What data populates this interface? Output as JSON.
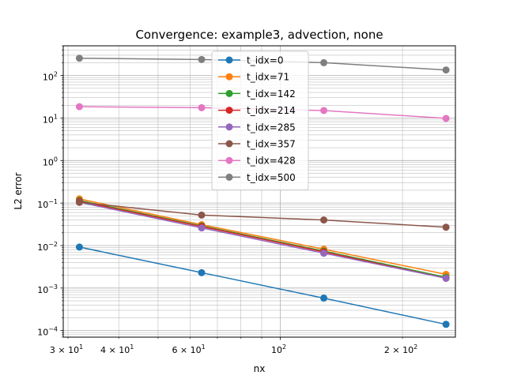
{
  "chart_data": {
    "type": "line",
    "title": "Convergence: example3, advection, none",
    "xlabel": "nx",
    "ylabel": "L2 error",
    "xscale": "log",
    "yscale": "log",
    "xlim": [
      29.2,
      270
    ],
    "ylim": [
      7e-05,
      500
    ],
    "grid": "major+minor",
    "legend_position": "top-center",
    "x": [
      32,
      64,
      128,
      256
    ],
    "xticks": [
      {
        "value": 30,
        "base": "3 × 10",
        "exp": "1"
      },
      {
        "value": 40,
        "base": "4 × 10",
        "exp": "1"
      },
      {
        "value": 60,
        "base": "6 × 10",
        "exp": "1"
      },
      {
        "value": 100,
        "base": "10",
        "exp": "2"
      },
      {
        "value": 200,
        "base": "2 × 10",
        "exp": "2"
      }
    ],
    "yticks": [
      {
        "value": 0.0001,
        "base": "10",
        "exp": "−4"
      },
      {
        "value": 0.001,
        "base": "10",
        "exp": "−3"
      },
      {
        "value": 0.01,
        "base": "10",
        "exp": "−2"
      },
      {
        "value": 0.1,
        "base": "10",
        "exp": "−1"
      },
      {
        "value": 1,
        "base": "10",
        "exp": "0"
      },
      {
        "value": 10,
        "base": "10",
        "exp": "1"
      },
      {
        "value": 100,
        "base": "10",
        "exp": "2"
      }
    ],
    "series": [
      {
        "name": "t_idx=0",
        "color": "#1f77b4",
        "values": [
          0.0092,
          0.0023,
          0.00058,
          0.00014
        ]
      },
      {
        "name": "t_idx=71",
        "color": "#ff7f0e",
        "values": [
          0.125,
          0.031,
          0.0082,
          0.0021
        ]
      },
      {
        "name": "t_idx=142",
        "color": "#2ca02c",
        "values": [
          0.115,
          0.029,
          0.0074,
          0.0018
        ]
      },
      {
        "name": "t_idx=214",
        "color": "#d62728",
        "values": [
          0.11,
          0.028,
          0.0071,
          0.0017
        ]
      },
      {
        "name": "t_idx=285",
        "color": "#9467bd",
        "values": [
          0.104,
          0.026,
          0.0066,
          0.0017
        ]
      },
      {
        "name": "t_idx=357",
        "color": "#8c564b",
        "values": [
          0.104,
          0.052,
          0.04,
          0.027
        ]
      },
      {
        "name": "t_idx=428",
        "color": "#e377c2",
        "values": [
          18.5,
          17.5,
          15.0,
          9.8
        ]
      },
      {
        "name": "t_idx=500",
        "color": "#7f7f7f",
        "values": [
          255,
          238,
          200,
          135
        ]
      }
    ]
  }
}
